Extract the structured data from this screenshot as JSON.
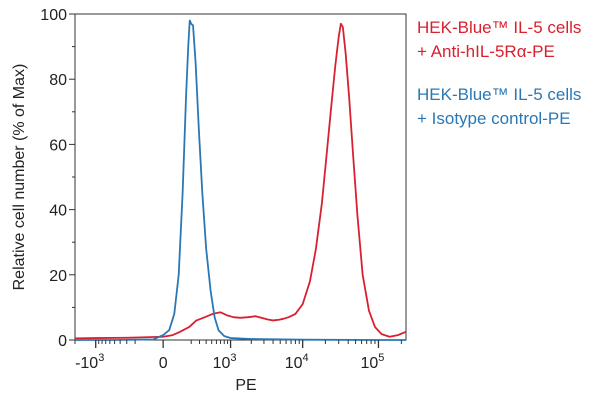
{
  "chart_data": {
    "type": "line",
    "xlabel": "PE",
    "ylabel": "Relative cell number (% of Max)",
    "xaxis_scale": "biexponential",
    "ylim": [
      0,
      100
    ],
    "y_ticks": [
      {
        "value": 0,
        "label": "0"
      },
      {
        "value": 20,
        "label": "20"
      },
      {
        "value": 40,
        "label": "40"
      },
      {
        "value": 60,
        "label": "60"
      },
      {
        "value": 80,
        "label": "80"
      },
      {
        "value": 100,
        "label": "100"
      }
    ],
    "x_ticks": [
      {
        "value": -1000,
        "base": "-10",
        "exp": "3"
      },
      {
        "value": 0,
        "base": "0",
        "exp": ""
      },
      {
        "value": 1000,
        "base": "10",
        "exp": "3"
      },
      {
        "value": 10000,
        "base": "10",
        "exp": "4"
      },
      {
        "value": 100000,
        "base": "10",
        "exp": "5"
      }
    ],
    "grid": false,
    "legend_position": "right",
    "series": [
      {
        "name_line1": "HEK-Blue™ IL-5 cells",
        "name_line2": "+ Anti-hIL-5Rα-PE",
        "color": "#d9202f",
        "points": [
          [
            -2000,
            0.5
          ],
          [
            -1000,
            0.6
          ],
          [
            -300,
            0.7
          ],
          [
            0,
            1
          ],
          [
            50,
            1.5
          ],
          [
            100,
            2.5
          ],
          [
            180,
            4
          ],
          [
            260,
            6
          ],
          [
            380,
            7
          ],
          [
            520,
            8
          ],
          [
            700,
            8.5
          ],
          [
            900,
            7.5
          ],
          [
            1100,
            7
          ],
          [
            1400,
            6.8
          ],
          [
            1800,
            7
          ],
          [
            2300,
            7.3
          ],
          [
            2800,
            6.8
          ],
          [
            3400,
            6.3
          ],
          [
            4000,
            6
          ],
          [
            4800,
            6.2
          ],
          [
            5500,
            6.5
          ],
          [
            6500,
            7
          ],
          [
            8000,
            8
          ],
          [
            10000,
            11
          ],
          [
            12500,
            18
          ],
          [
            15000,
            28
          ],
          [
            18000,
            42
          ],
          [
            21000,
            58
          ],
          [
            24000,
            72
          ],
          [
            27000,
            84
          ],
          [
            30000,
            93
          ],
          [
            32000,
            97
          ],
          [
            34000,
            96
          ],
          [
            37000,
            88
          ],
          [
            41000,
            75
          ],
          [
            46000,
            58
          ],
          [
            53000,
            38
          ],
          [
            62000,
            20
          ],
          [
            75000,
            9
          ],
          [
            90000,
            4
          ],
          [
            110000,
            1.8
          ],
          [
            140000,
            1
          ],
          [
            180000,
            1.5
          ],
          [
            230000,
            2.5
          ]
        ]
      },
      {
        "name_line1": "HEK-Blue™ IL-5 cells",
        "name_line2": "+ Isotype control-PE",
        "color": "#2978b5",
        "points": [
          [
            -2000,
            0
          ],
          [
            -500,
            0
          ],
          [
            -50,
            0.2
          ],
          [
            0,
            1.5
          ],
          [
            30,
            3
          ],
          [
            60,
            8
          ],
          [
            90,
            20
          ],
          [
            120,
            45
          ],
          [
            150,
            75
          ],
          [
            170,
            90
          ],
          [
            185,
            98
          ],
          [
            200,
            97
          ],
          [
            220,
            96.5
          ],
          [
            250,
            85
          ],
          [
            290,
            65
          ],
          [
            340,
            45
          ],
          [
            400,
            28
          ],
          [
            480,
            15
          ],
          [
            560,
            7
          ],
          [
            650,
            3
          ],
          [
            800,
            1.2
          ],
          [
            1000,
            0.6
          ],
          [
            2000,
            0.3
          ],
          [
            10000,
            0.1
          ],
          [
            100000,
            0
          ],
          [
            230000,
            0
          ]
        ]
      }
    ]
  }
}
